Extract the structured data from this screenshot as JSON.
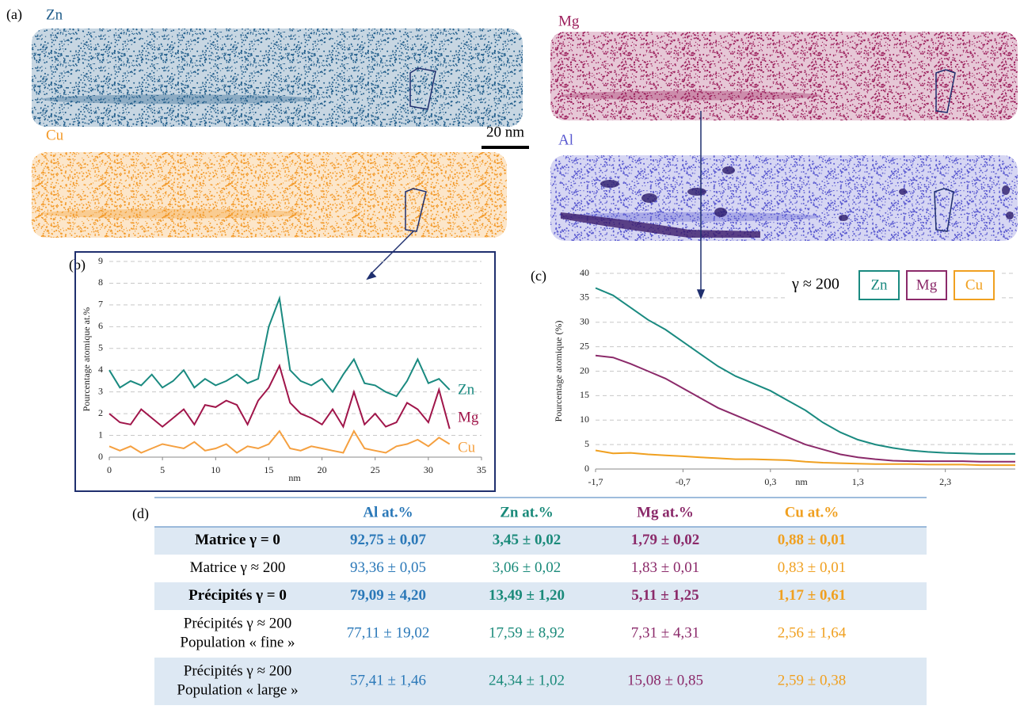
{
  "panel_labels": [
    "(a)",
    "(b)",
    "(c)",
    "(d)"
  ],
  "maps": [
    {
      "label": "Zn",
      "color": "#1f5c8a"
    },
    {
      "label": "Mg",
      "color": "#9c1f5c"
    },
    {
      "label": "Cu",
      "color": "#f39a2a"
    },
    {
      "label": "Al",
      "color": "#5a5ad0"
    }
  ],
  "scale_bar": "20 nm",
  "chart_data": [
    {
      "type": "line",
      "xlabel": "nm",
      "ylabel": "Pourcentage atomique at.%",
      "x": [
        0,
        1,
        2,
        3,
        4,
        5,
        6,
        7,
        8,
        9,
        10,
        11,
        12,
        13,
        14,
        15,
        16,
        17,
        18,
        19,
        20,
        21,
        22,
        23,
        24,
        25,
        26,
        27,
        28,
        29,
        30,
        31,
        32
      ],
      "xlim": [
        0,
        35
      ],
      "xticks": [
        0,
        5,
        10,
        15,
        20,
        25,
        30,
        35
      ],
      "ylim": [
        0,
        9
      ],
      "yticks": [
        0,
        1,
        2,
        3,
        4,
        5,
        6,
        7,
        8,
        9
      ],
      "grid": true,
      "legend": "right",
      "series": [
        {
          "name": "Zn",
          "color": "#1a8a80",
          "values": [
            4,
            3.2,
            3.5,
            3.3,
            3.8,
            3.2,
            3.5,
            4,
            3.2,
            3.6,
            3.3,
            3.5,
            3.8,
            3.4,
            3.6,
            6,
            7.3,
            4,
            3.5,
            3.3,
            3.6,
            3,
            3.8,
            4.5,
            3.4,
            3.3,
            3,
            2.8,
            3.5,
            4.5,
            3.4,
            3.6,
            3.1
          ]
        },
        {
          "name": "Mg",
          "color": "#a0154a",
          "values": [
            2,
            1.6,
            1.5,
            2.2,
            1.8,
            1.4,
            1.8,
            2.2,
            1.5,
            2.4,
            2.3,
            2.6,
            2.4,
            1.5,
            2.6,
            3.2,
            4.2,
            2.5,
            2,
            1.8,
            1.5,
            2.2,
            1.4,
            3,
            1.5,
            2,
            1.4,
            1.6,
            2.5,
            2.2,
            1.6,
            3.1,
            1.3
          ]
        },
        {
          "name": "Cu",
          "color": "#f5a040",
          "values": [
            0.5,
            0.3,
            0.5,
            0.2,
            0.4,
            0.6,
            0.5,
            0.4,
            0.7,
            0.3,
            0.4,
            0.6,
            0.2,
            0.5,
            0.4,
            0.6,
            1.2,
            0.4,
            0.3,
            0.5,
            0.4,
            0.3,
            0.2,
            1.2,
            0.4,
            0.3,
            0.2,
            0.5,
            0.6,
            0.8,
            0.5,
            0.9,
            0.6
          ]
        }
      ]
    },
    {
      "type": "line",
      "xlabel": "nm",
      "ylabel": "Pourcentage atomique (%)",
      "x": [
        -1.7,
        -1.5,
        -1.3,
        -1.1,
        -0.9,
        -0.7,
        -0.5,
        -0.3,
        -0.1,
        0.1,
        0.3,
        0.5,
        0.7,
        0.9,
        1.1,
        1.3,
        1.5,
        1.7,
        1.9,
        2.1,
        2.3,
        2.5,
        2.7,
        2.9,
        3.1
      ],
      "xlim": [
        -1.7,
        3.1
      ],
      "xticks": [
        {
          "value": -1.7,
          "label": "-1,7"
        },
        {
          "value": -0.7,
          "label": "-0,7"
        },
        {
          "value": 0.3,
          "label": "0,3"
        },
        {
          "value": 1.3,
          "label": "1,3"
        },
        {
          "value": 2.3,
          "label": "2,3"
        }
      ],
      "ylim": [
        0,
        40
      ],
      "yticks": [
        0,
        5,
        10,
        15,
        20,
        25,
        30,
        35,
        40
      ],
      "grid": true,
      "legend": "upper right",
      "legend_title": "γ ≈ 200",
      "series": [
        {
          "name": "Zn",
          "color": "#1a8a80",
          "values": [
            37,
            35.5,
            33,
            30.5,
            28.5,
            26,
            23.5,
            21,
            19,
            17.5,
            16,
            14,
            12,
            9.5,
            7.5,
            6,
            5,
            4.3,
            3.8,
            3.5,
            3.3,
            3.2,
            3.1,
            3.1,
            3.1
          ]
        },
        {
          "name": "Mg",
          "color": "#8b2a6a",
          "values": [
            23.2,
            22.8,
            21.5,
            20,
            18.5,
            16.5,
            14.5,
            12.5,
            11,
            9.5,
            8,
            6.5,
            5,
            4,
            3,
            2.4,
            2,
            1.7,
            1.6,
            1.6,
            1.6,
            1.6,
            1.5,
            1.5,
            1.5
          ]
        },
        {
          "name": "Cu",
          "color": "#f0a020",
          "values": [
            3.8,
            3.2,
            3.3,
            3,
            2.8,
            2.6,
            2.4,
            2.2,
            2,
            2,
            1.9,
            1.8,
            1.5,
            1.3,
            1.2,
            1.1,
            1,
            1,
            1,
            0.9,
            0.9,
            0.9,
            0.8,
            0.8,
            0.8
          ]
        }
      ]
    }
  ],
  "table": {
    "header": [
      "Al at.%",
      "Zn at.%",
      "Mg at.%",
      "Cu at.%"
    ],
    "column_colors": [
      "#2a78b8",
      "#1a8a7a",
      "#8b2a6a",
      "#f0a020"
    ],
    "rows": [
      {
        "label": [
          "Matrice γ = 0"
        ],
        "bold": true,
        "shaded": true,
        "cells": [
          "92,75 ± 0,07",
          "3,45 ± 0,02",
          "1,79 ± 0,02",
          "0,88 ± 0,01"
        ]
      },
      {
        "label": [
          "Matrice γ ≈ 200"
        ],
        "bold": false,
        "shaded": false,
        "cells": [
          "93,36 ± 0,05",
          "3,06 ± 0,02",
          "1,83 ± 0,01",
          "0,83 ± 0,01"
        ]
      },
      {
        "label": [
          "Précipités γ = 0"
        ],
        "bold": true,
        "shaded": true,
        "cells": [
          "79,09 ± 4,20",
          "13,49 ± 1,20",
          "5,11 ± 1,25",
          "1,17 ± 0,61"
        ]
      },
      {
        "label": [
          "Précipités γ ≈ 200",
          "Population « fine »"
        ],
        "bold": false,
        "shaded": false,
        "cells": [
          "77,11 ± 19,02",
          "17,59 ± 8,92",
          "7,31 ± 4,31",
          "2,56 ± 1,64"
        ]
      },
      {
        "label": [
          "Précipités γ ≈ 200",
          "Population « large »"
        ],
        "bold": false,
        "shaded": true,
        "cells": [
          "57,41 ± 1,46",
          "24,34 ± 1,02",
          "15,08 ± 0,85",
          "2,59 ± 0,38"
        ]
      }
    ]
  }
}
